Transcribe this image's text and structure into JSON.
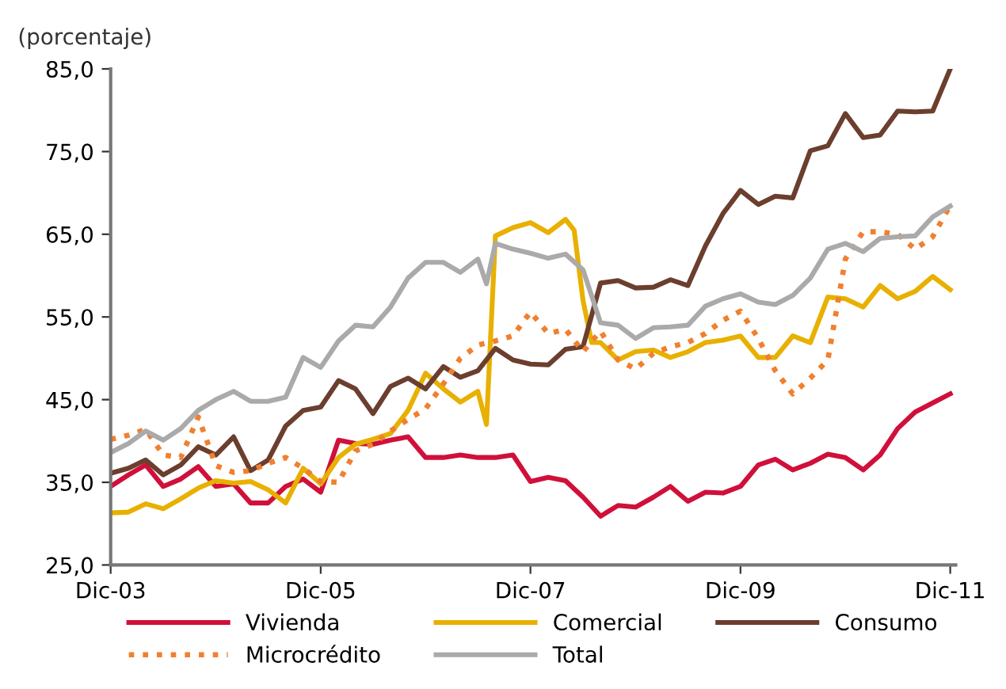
{
  "chart_data": {
    "type": "line",
    "ylabel": "(porcentaje)",
    "x": [
      "2003-12",
      "2004-02",
      "2004-04",
      "2004-06",
      "2004-08",
      "2004-10",
      "2004-12",
      "2005-02",
      "2005-04",
      "2005-06",
      "2005-08",
      "2005-10",
      "2005-12",
      "2006-02",
      "2006-04",
      "2006-06",
      "2006-08",
      "2006-10",
      "2006-12",
      "2007-02",
      "2007-04",
      "2007-06",
      "2007-08",
      "2007-10",
      "2007-12",
      "2008-02",
      "2008-04",
      "2008-06",
      "2008-08",
      "2008-10",
      "2008-12",
      "2009-02",
      "2009-04",
      "2009-06",
      "2009-08",
      "2009-10",
      "2009-12",
      "2010-02",
      "2010-04",
      "2010-06",
      "2010-08",
      "2010-10",
      "2010-12",
      "2011-02",
      "2011-04",
      "2011-06",
      "2011-08",
      "2011-10",
      "2011-12"
    ],
    "series": [
      {
        "name": "Vivienda",
        "color": "#d0103a",
        "values": [
          34.5,
          35.9,
          37.1,
          34.5,
          35.4,
          36.9,
          34.5,
          34.8,
          32.5,
          32.5,
          34.5,
          35.4,
          33.8,
          40.1,
          39.7,
          39.6,
          40.1,
          40.5,
          38,
          38,
          38.3,
          38,
          38,
          38.3,
          35.1,
          35.6,
          35.2,
          33.2,
          30.9,
          32.2,
          32.0,
          33.2,
          34.5,
          32.7,
          33.8,
          33.7,
          34.5,
          37.1,
          37.8,
          36.5,
          37.3,
          38.4,
          38,
          36.5,
          38.3,
          41.5,
          43.5,
          44.6,
          45.7
        ]
      },
      {
        "name": "Comercial",
        "color": "#e8b000",
        "x": [
          "2003-12",
          "2004-02",
          "2004-04",
          "2004-06",
          "2004-08",
          "2004-10",
          "2004-12",
          "2005-02",
          "2005-04",
          "2005-06",
          "2005-08",
          "2005-10",
          "2005-12",
          "2006-02",
          "2006-04",
          "2006-06",
          "2006-08",
          "2006-10",
          "2006-12",
          "2007-02",
          "2007-04",
          "2007-06",
          "2007-07",
          "2007-08",
          "2007-10",
          "2007-12",
          "2008-02",
          "2008-04",
          "2008-05",
          "2008-06",
          "2008-07",
          "2008-08",
          "2008-10",
          "2008-12",
          "2009-02",
          "2009-04",
          "2009-06",
          "2009-08",
          "2009-10",
          "2009-12",
          "2010-02",
          "2010-04",
          "2010-06",
          "2010-08",
          "2010-10",
          "2010-12",
          "2011-02",
          "2011-04",
          "2011-06",
          "2011-08",
          "2011-10",
          "2011-12"
        ],
        "values": [
          31.3,
          31.4,
          32.4,
          31.8,
          33.0,
          34.3,
          35.2,
          34.9,
          35.1,
          34.1,
          32.5,
          36.7,
          34.8,
          38,
          39.6,
          40.2,
          40.9,
          43.7,
          48.2,
          46.3,
          44.7,
          46,
          42,
          64.8,
          65.8,
          66.4,
          65.2,
          66.8,
          65.5,
          57,
          51.9,
          51.9,
          49.8,
          50.8,
          51,
          50.1,
          50.8,
          51.9,
          52.2,
          52.7,
          50.1,
          50.1,
          52.7,
          51.9,
          57.4,
          57.2,
          56.2,
          58.8,
          57.2,
          58.1,
          59.9,
          58.3
        ]
      },
      {
        "name": "Consumo",
        "color": "#6b3e2e",
        "values": [
          36.1,
          36.7,
          37.7,
          35.9,
          37.1,
          39.3,
          38.3,
          40.5,
          36.4,
          37.7,
          41.8,
          43.7,
          44.1,
          47.3,
          46.3,
          43.3,
          46.6,
          47.6,
          46.3,
          49,
          47.7,
          48.5,
          51.2,
          49.8,
          49.3,
          49.2,
          51.1,
          51.4,
          59.1,
          59.4,
          58.5,
          58.6,
          59.5,
          58.8,
          63.6,
          67.5,
          70.3,
          68.6,
          69.6,
          69.4,
          75.1,
          75.7,
          79.6,
          76.7,
          77,
          79.9,
          79.8,
          79.9,
          85
        ]
      },
      {
        "name": "Microcrédito",
        "color": "#f08030",
        "line_style": "dotted",
        "values": [
          40.2,
          40.7,
          41.4,
          38.3,
          38,
          42.9,
          37,
          36.2,
          36.4,
          37.3,
          38,
          36.7,
          35.1,
          35,
          38.8,
          39.6,
          41.2,
          42.6,
          43.9,
          46.9,
          50,
          51.6,
          52.1,
          52.7,
          55.6,
          53,
          53.5,
          50.8,
          53.3,
          49.8,
          48.7,
          50.6,
          51.4,
          51.9,
          53,
          54.6,
          55.7,
          52.4,
          48.5,
          45.7,
          47.6,
          49.8,
          62,
          65.3,
          65.3,
          65,
          63.2,
          64.7,
          68.5
        ]
      },
      {
        "name": "Total",
        "color": "#aaaaaa",
        "x": [
          "2003-12",
          "2004-02",
          "2004-04",
          "2004-06",
          "2004-08",
          "2004-10",
          "2004-12",
          "2005-02",
          "2005-04",
          "2005-06",
          "2005-08",
          "2005-10",
          "2005-12",
          "2006-02",
          "2006-04",
          "2006-06",
          "2006-08",
          "2006-10",
          "2006-12",
          "2007-02",
          "2007-04",
          "2007-06",
          "2007-07",
          "2007-08",
          "2007-10",
          "2007-12",
          "2008-02",
          "2008-04",
          "2008-06",
          "2008-08",
          "2008-10",
          "2008-12",
          "2009-02",
          "2009-04",
          "2009-06",
          "2009-08",
          "2009-10",
          "2009-12",
          "2010-02",
          "2010-04",
          "2010-06",
          "2010-08",
          "2010-10",
          "2010-12",
          "2011-02",
          "2011-04",
          "2011-06",
          "2011-08",
          "2011-10",
          "2011-12"
        ],
        "values": [
          38.6,
          39.7,
          41.2,
          40.1,
          41.5,
          43.7,
          45,
          46,
          44.8,
          44.8,
          45.3,
          50.1,
          48.9,
          52.1,
          54,
          53.8,
          56.2,
          59.7,
          61.6,
          61.6,
          60.4,
          62,
          59,
          63.9,
          63.2,
          62.7,
          62.1,
          62.6,
          60.7,
          54.3,
          54,
          52.4,
          53.7,
          53.8,
          54,
          56.3,
          57.2,
          57.8,
          56.8,
          56.5,
          57.6,
          59.7,
          63.2,
          63.9,
          62.9,
          64.5,
          64.7,
          64.8,
          67.1,
          68.4
        ]
      }
    ],
    "xlim": [
      "2003-12",
      "2011-12-20"
    ],
    "xticks": [
      {
        "value": "2003-12",
        "label": "Dic-03"
      },
      {
        "value": "2005-12",
        "label": "Dic-05"
      },
      {
        "value": "2007-12",
        "label": "Dic-07"
      },
      {
        "value": "2009-12",
        "label": "Dic-09"
      },
      {
        "value": "2011-12",
        "label": "Dic-11"
      }
    ],
    "ylim": [
      25,
      85
    ],
    "yticks": [
      {
        "value": 25,
        "label": "25,0"
      },
      {
        "value": 35,
        "label": "35,0"
      },
      {
        "value": 45,
        "label": "45,0"
      },
      {
        "value": 55,
        "label": "55,0"
      },
      {
        "value": 65,
        "label": "65,0"
      },
      {
        "value": 75,
        "label": "75,0"
      },
      {
        "value": 85,
        "label": "85,0"
      }
    ],
    "grid": false,
    "legend": "bottom",
    "marker": "none",
    "line_style": "solid"
  }
}
